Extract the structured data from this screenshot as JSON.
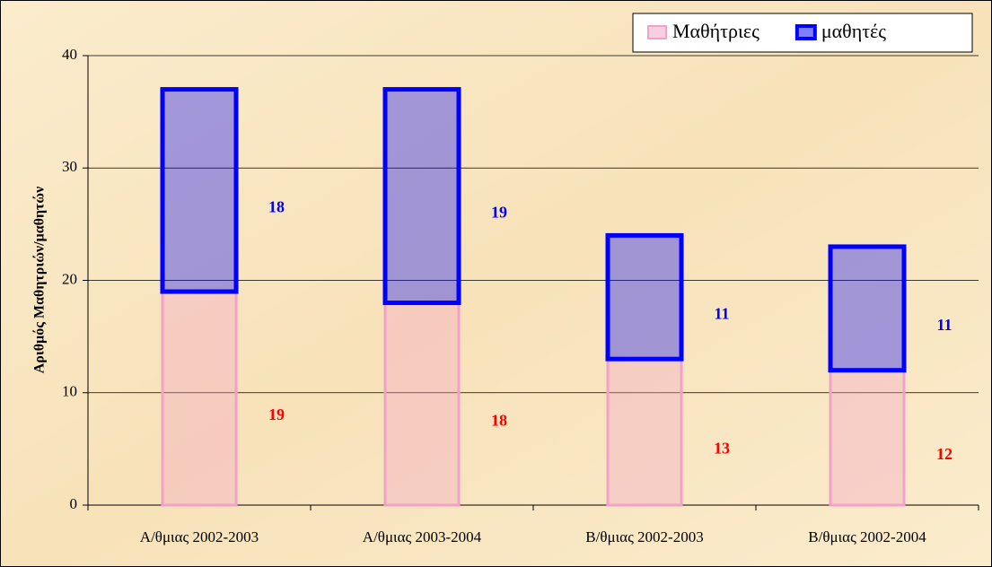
{
  "chart_data": {
    "type": "stacked_bar",
    "y_label": "Αριθμός Μαθητριών/μαθητών",
    "categories": [
      "Α/θμιας 2002-2003",
      "Α/θμιας 2003-2004",
      "Β/θμιας 2002-2003",
      "Β/θμιας 2002-2004"
    ],
    "series": [
      {
        "name": "Μαθήτριες",
        "color": "#f4a0c8",
        "label_color": "#ff0000",
        "values": [
          19,
          18,
          13,
          12
        ]
      },
      {
        "name": "μαθητές",
        "color": "#0000ff",
        "label_color": "#0000ff",
        "values": [
          18,
          19,
          11,
          11
        ]
      }
    ],
    "ylim": [
      0,
      40
    ],
    "yticks": [
      0,
      10,
      20,
      30,
      40
    ],
    "grid": true,
    "legend": "top-right"
  }
}
